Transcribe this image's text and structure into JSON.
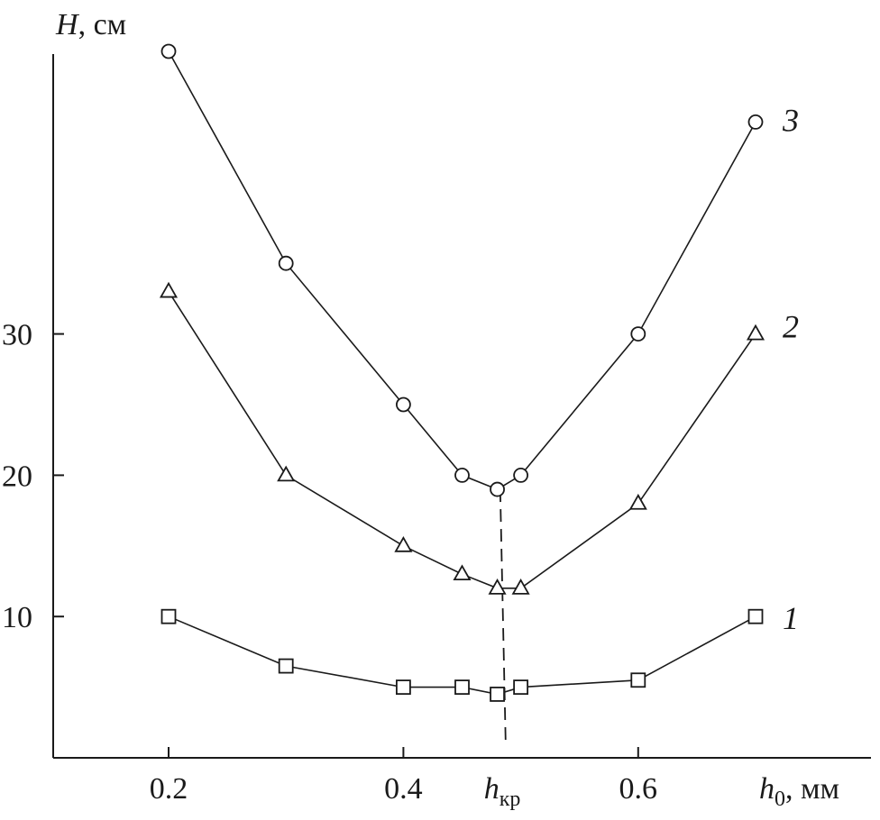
{
  "chart_data": {
    "type": "line",
    "title": "",
    "ylabel": {
      "symbol": "H",
      "unit": ", см"
    },
    "xlabel": {
      "symbol": "h",
      "subscript": "0",
      "unit": ", мм"
    },
    "xlim": [
      0.1,
      0.69
    ],
    "ylim": [
      0,
      50
    ],
    "xticks": [
      {
        "value": 0.2,
        "label": "0.2"
      },
      {
        "value": 0.4,
        "label": "0.4"
      },
      {
        "value": 0.6,
        "label": "0.6"
      }
    ],
    "yticks": [
      {
        "value": 10,
        "label": "10"
      },
      {
        "value": 20,
        "label": "20"
      },
      {
        "value": 30,
        "label": "30"
      }
    ],
    "critical": {
      "x": 0.484,
      "label_symbol": "h",
      "label_subscript": "кр",
      "y_top": 19
    },
    "grid": false,
    "series": [
      {
        "label": "1",
        "marker": "square",
        "x": [
          0.2,
          0.3,
          0.4,
          0.45,
          0.48,
          0.5,
          0.6,
          0.7
        ],
        "y": [
          10,
          6.5,
          5,
          5,
          4.5,
          5,
          5.5,
          10
        ]
      },
      {
        "label": "2",
        "marker": "triangle",
        "x": [
          0.2,
          0.3,
          0.4,
          0.45,
          0.48,
          0.5,
          0.6,
          0.7
        ],
        "y": [
          33,
          20,
          15,
          13,
          12,
          12,
          18,
          30
        ]
      },
      {
        "label": "3",
        "marker": "circle",
        "x": [
          0.2,
          0.3,
          0.4,
          0.45,
          0.48,
          0.5,
          0.6,
          0.7
        ],
        "y": [
          50,
          35,
          25,
          20,
          19,
          20,
          30,
          45
        ]
      }
    ]
  }
}
